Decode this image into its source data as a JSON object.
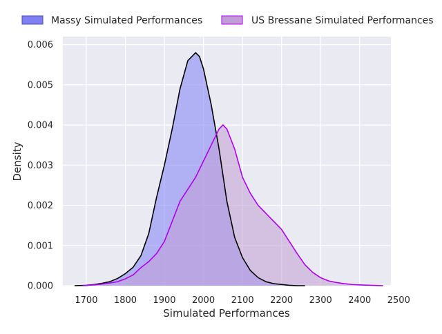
{
  "chart_data": {
    "type": "area",
    "title": "",
    "xlabel": "Simulated Performances",
    "ylabel": "Density",
    "xlim": [
      1640,
      2480
    ],
    "ylim": [
      0,
      0.0062
    ],
    "x_ticks": [
      1700,
      1800,
      1900,
      2000,
      2100,
      2200,
      2300,
      2400,
      2500
    ],
    "y_ticks": [
      0.0,
      0.001,
      0.002,
      0.003,
      0.004,
      0.005,
      0.006
    ],
    "x_tick_labels": [
      "1700",
      "1800",
      "1900",
      "2000",
      "2100",
      "2200",
      "2300",
      "2400",
      "2500"
    ],
    "y_tick_labels": [
      "0.000",
      "0.001",
      "0.002",
      "0.003",
      "0.004",
      "0.005",
      "0.006"
    ],
    "grid": true,
    "legend_position": "top",
    "series": [
      {
        "name": "Massy Simulated Performances",
        "fill_color": "#7f7ff6",
        "line_color": "#000000",
        "x": [
          1670,
          1700,
          1720,
          1740,
          1760,
          1780,
          1800,
          1820,
          1840,
          1860,
          1880,
          1900,
          1920,
          1940,
          1960,
          1980,
          1990,
          2000,
          2020,
          2040,
          2060,
          2080,
          2100,
          2120,
          2140,
          2160,
          2180,
          2200,
          2220,
          2240,
          2260
        ],
        "y": [
          0.0,
          1e-05,
          3e-05,
          6e-05,
          0.0001,
          0.00018,
          0.0003,
          0.00046,
          0.00075,
          0.0013,
          0.0022,
          0.003,
          0.0039,
          0.0049,
          0.0056,
          0.0058,
          0.0057,
          0.0054,
          0.0045,
          0.0034,
          0.0021,
          0.0012,
          0.0007,
          0.00038,
          0.0002,
          0.0001,
          5e-05,
          3e-05,
          1e-05,
          0.0,
          0.0
        ]
      },
      {
        "name": "US Bressane Simulated Performances",
        "fill_color": "#c19ed6",
        "line_color": "#b000ee",
        "x": [
          1690,
          1720,
          1750,
          1780,
          1800,
          1820,
          1840,
          1860,
          1880,
          1900,
          1920,
          1940,
          1960,
          1980,
          2000,
          2020,
          2040,
          2050,
          2060,
          2080,
          2100,
          2120,
          2140,
          2160,
          2180,
          2200,
          2220,
          2240,
          2260,
          2280,
          2300,
          2320,
          2340,
          2360,
          2380,
          2400,
          2430,
          2460
        ],
        "y": [
          0.0,
          2e-05,
          5e-05,
          0.0001,
          0.00017,
          0.00027,
          0.00045,
          0.0006,
          0.0008,
          0.0011,
          0.0016,
          0.0021,
          0.0024,
          0.0027,
          0.0031,
          0.0035,
          0.0039,
          0.004,
          0.0039,
          0.0034,
          0.0027,
          0.0023,
          0.002,
          0.0018,
          0.0016,
          0.0014,
          0.0011,
          0.0008,
          0.00052,
          0.00033,
          0.0002,
          0.00012,
          8e-05,
          5e-05,
          3e-05,
          2e-05,
          1e-05,
          0.0
        ]
      }
    ]
  }
}
